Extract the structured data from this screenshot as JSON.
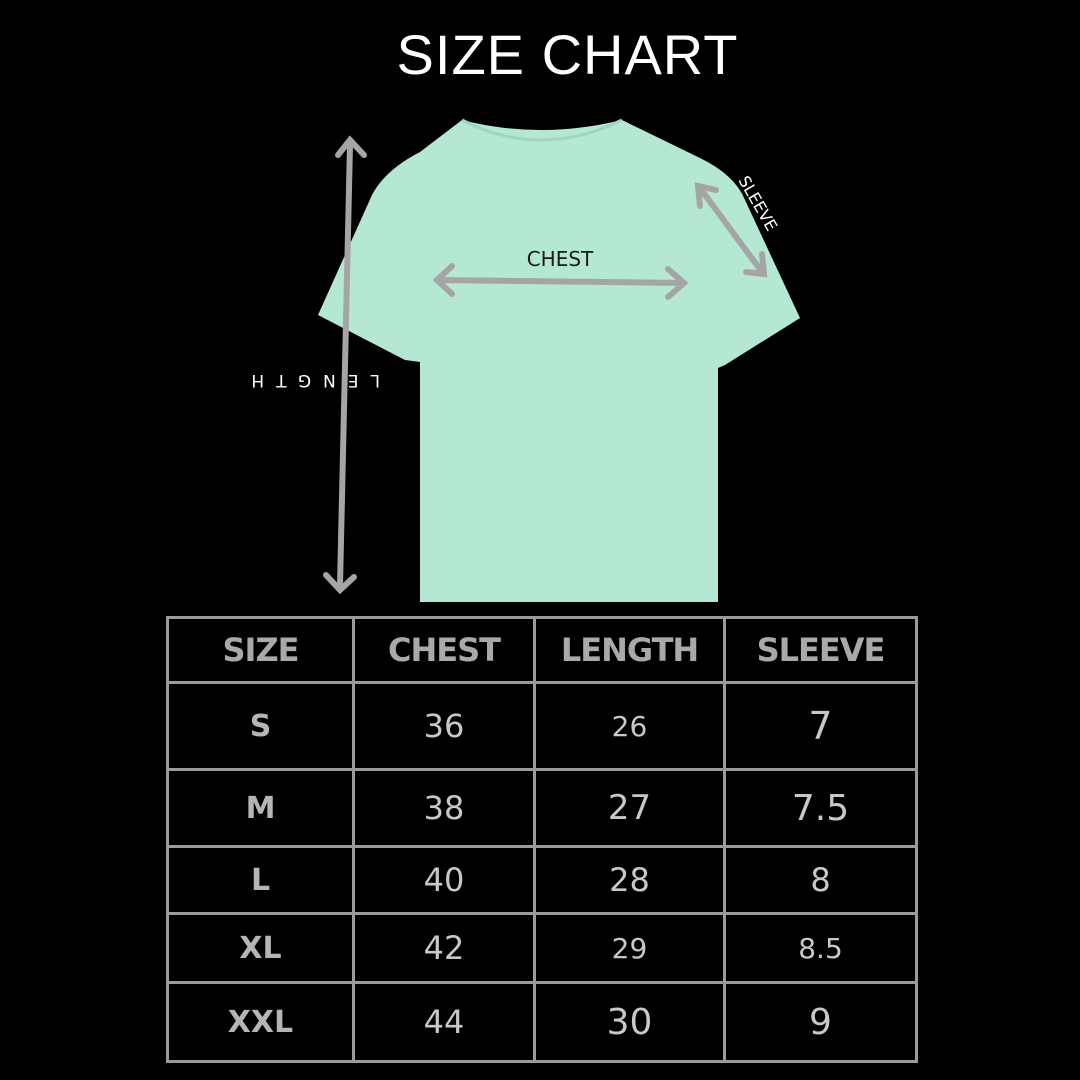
{
  "title": "SIZE CHART",
  "diagram": {
    "chest_label": "CHEST",
    "sleeve_label": "SLEEVE",
    "length_label": "LENGTH",
    "shirt_color": "#b5e8d2",
    "arrow_color": "#a5a5a5"
  },
  "table": {
    "headers": [
      "SIZE",
      "CHEST",
      "LENGTH",
      "SLEEVE"
    ],
    "rows": [
      [
        "S",
        "36",
        "26",
        "7"
      ],
      [
        "M",
        "38",
        "27",
        "7.5"
      ],
      [
        "L",
        "40",
        "28",
        "8"
      ],
      [
        "XL",
        "42",
        "29",
        "8.5"
      ],
      [
        "XXL",
        "44",
        "30",
        "9"
      ]
    ]
  }
}
